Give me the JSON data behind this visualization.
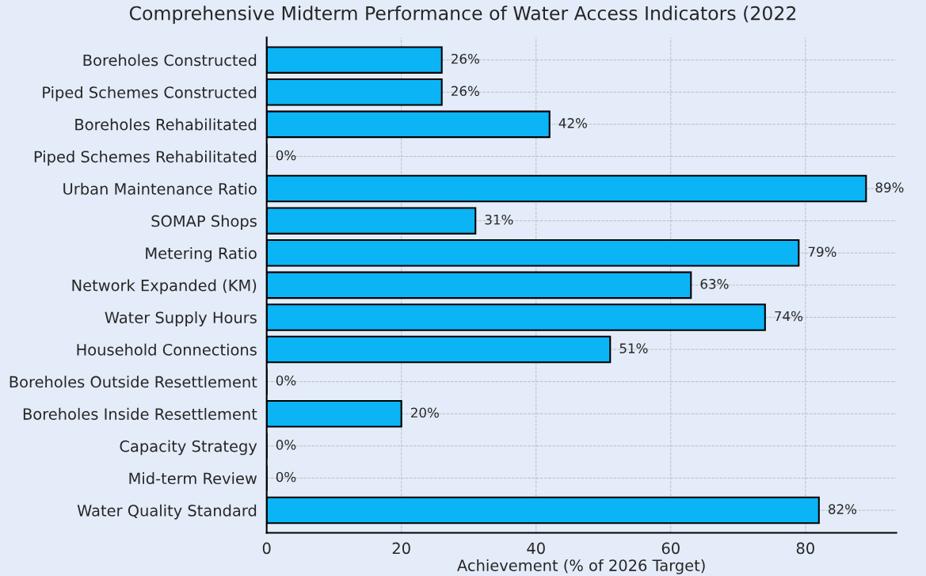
{
  "chart_data": {
    "type": "bar",
    "orientation": "horizontal",
    "title": "Comprehensive Midterm Performance of Water Access Indicators (2022",
    "xlabel": "Achievement (% of 2026 Target)",
    "categories": [
      "Boreholes Constructed",
      "Piped Schemes Constructed",
      "Boreholes Rehabilitated",
      "Piped Schemes Rehabilitated",
      "Urban Maintenance Ratio",
      "SOMAP Shops",
      "Metering Ratio",
      "Network Expanded (KM)",
      "Water Supply Hours",
      "Household Connections",
      "Boreholes Outside Resettlement",
      "Boreholes Inside Resettlement",
      "Capacity Strategy",
      "Mid-term Review",
      "Water Quality Standard"
    ],
    "values": [
      26,
      26,
      42,
      0,
      89,
      31,
      79,
      63,
      74,
      51,
      0,
      20,
      0,
      0,
      82
    ],
    "value_labels": [
      "26%",
      "26%",
      "42%",
      "0%",
      "89%",
      "31%",
      "79%",
      "63%",
      "74%",
      "51%",
      "0%",
      "20%",
      "0%",
      "0%",
      "82%"
    ],
    "color": "#0bb4f5",
    "xlim": [
      0,
      93.5
    ],
    "xticks": [
      0,
      20,
      40,
      60,
      80
    ],
    "grid": true
  }
}
